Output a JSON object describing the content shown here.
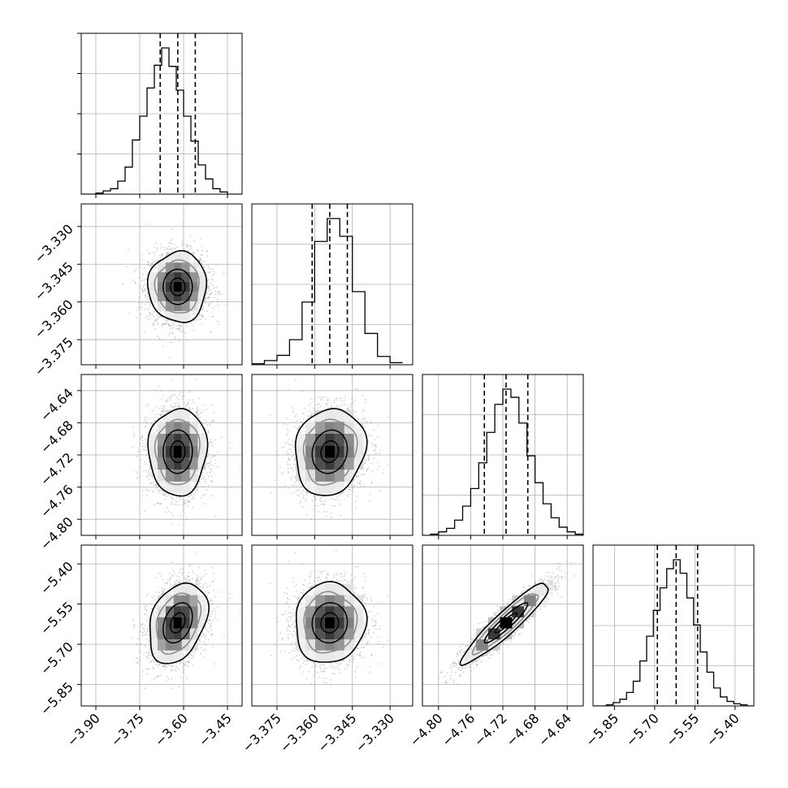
{
  "chart_data": {
    "type": "corner",
    "grid": true,
    "parameters": [
      {
        "range": [
          -3.95,
          -3.4
        ],
        "ticks": [
          -3.9,
          -3.75,
          -3.6,
          -3.45
        ],
        "tick_labels": [
          "−3.90",
          "−3.75",
          "−3.60",
          "−3.45"
        ],
        "quantiles": [
          -3.68,
          -3.62,
          -3.56
        ],
        "center": -3.62,
        "sigma": 0.05,
        "hist_bins": [
          -3.95,
          -3.925,
          -3.9,
          -3.875,
          -3.85,
          -3.825,
          -3.8,
          -3.775,
          -3.75,
          -3.725,
          -3.7,
          -3.675,
          -3.65,
          -3.625,
          -3.6,
          -3.575,
          -3.55,
          -3.525,
          -3.5,
          -3.475,
          -3.45,
          -3.425,
          -3.4
        ],
        "hist_counts": [
          0,
          0,
          1,
          3,
          5,
          12,
          25,
          50,
          72,
          98,
          119,
          135,
          118,
          96,
          72,
          49,
          27,
          14,
          5,
          2,
          0,
          0
        ]
      },
      {
        "range": [
          -3.385,
          -3.321
        ],
        "ticks": [
          -3.375,
          -3.36,
          -3.345,
          -3.33
        ],
        "tick_labels": [
          "−3.375",
          "−3.360",
          "−3.345",
          "−3.330"
        ],
        "quantiles": [
          -3.361,
          -3.354,
          -3.347
        ],
        "center": -3.354,
        "sigma": 0.007,
        "hist_bins": [
          -3.385,
          -3.38,
          -3.375,
          -3.37,
          -3.365,
          -3.36,
          -3.355,
          -3.35,
          -3.345,
          -3.34,
          -3.335,
          -3.33,
          -3.325
        ],
        "hist_counts": [
          1,
          4,
          9,
          24,
          60,
          118,
          140,
          123,
          70,
          30,
          8,
          2
        ]
      },
      {
        "range": [
          -4.82,
          -4.62
        ],
        "ticks": [
          -4.8,
          -4.76,
          -4.72,
          -4.68,
          -4.64
        ],
        "tick_labels": [
          "−4.80",
          "−4.76",
          "−4.72",
          "−4.68",
          "−4.64"
        ],
        "quantiles": [
          -4.743,
          -4.716,
          -4.689
        ],
        "center": -4.716,
        "sigma": 0.027,
        "hist_bins": [
          -4.82,
          -4.81,
          -4.8,
          -4.79,
          -4.78,
          -4.77,
          -4.76,
          -4.75,
          -4.74,
          -4.73,
          -4.72,
          -4.71,
          -4.7,
          -4.69,
          -4.68,
          -4.67,
          -4.66,
          -4.65,
          -4.64,
          -4.63,
          -4.62
        ],
        "hist_counts": [
          0,
          1,
          3,
          6,
          13,
          25,
          40,
          62,
          88,
          112,
          125,
          118,
          96,
          68,
          45,
          27,
          15,
          7,
          3,
          1
        ]
      },
      {
        "range": [
          -5.93,
          -5.33
        ],
        "ticks": [
          -5.85,
          -5.7,
          -5.55,
          -5.4
        ],
        "tick_labels": [
          "−5.85",
          "−5.70",
          "−5.55",
          "−5.40"
        ],
        "quantiles": [
          -5.69,
          -5.62,
          -5.54
        ],
        "center": -5.62,
        "sigma": 0.075,
        "hist_bins": [
          -5.93,
          -5.905,
          -5.88,
          -5.855,
          -5.83,
          -5.805,
          -5.78,
          -5.755,
          -5.73,
          -5.705,
          -5.68,
          -5.655,
          -5.63,
          -5.605,
          -5.58,
          -5.555,
          -5.53,
          -5.505,
          -5.48,
          -5.455,
          -5.43,
          -5.405,
          -5.38,
          -5.355,
          -5.33
        ],
        "hist_counts": [
          0,
          0,
          1,
          3,
          6,
          12,
          22,
          40,
          62,
          85,
          105,
          122,
          130,
          118,
          96,
          72,
          48,
          30,
          16,
          8,
          4,
          2,
          1,
          0
        ]
      }
    ],
    "correlations": [
      [
        1,
        0,
        0.02,
        0.32
      ],
      [
        0,
        1,
        0.12,
        0.04
      ],
      [
        0.02,
        0.12,
        1,
        0.93
      ],
      [
        0.32,
        0.04,
        0.93,
        1
      ]
    ],
    "contour_levels": [
      0.5,
      1.0,
      1.5,
      2.0
    ],
    "colors": {
      "line": "#000000",
      "scatter": "#9a9a9a",
      "grid": "#b0b0b0",
      "quantile_line": "#000000"
    }
  }
}
